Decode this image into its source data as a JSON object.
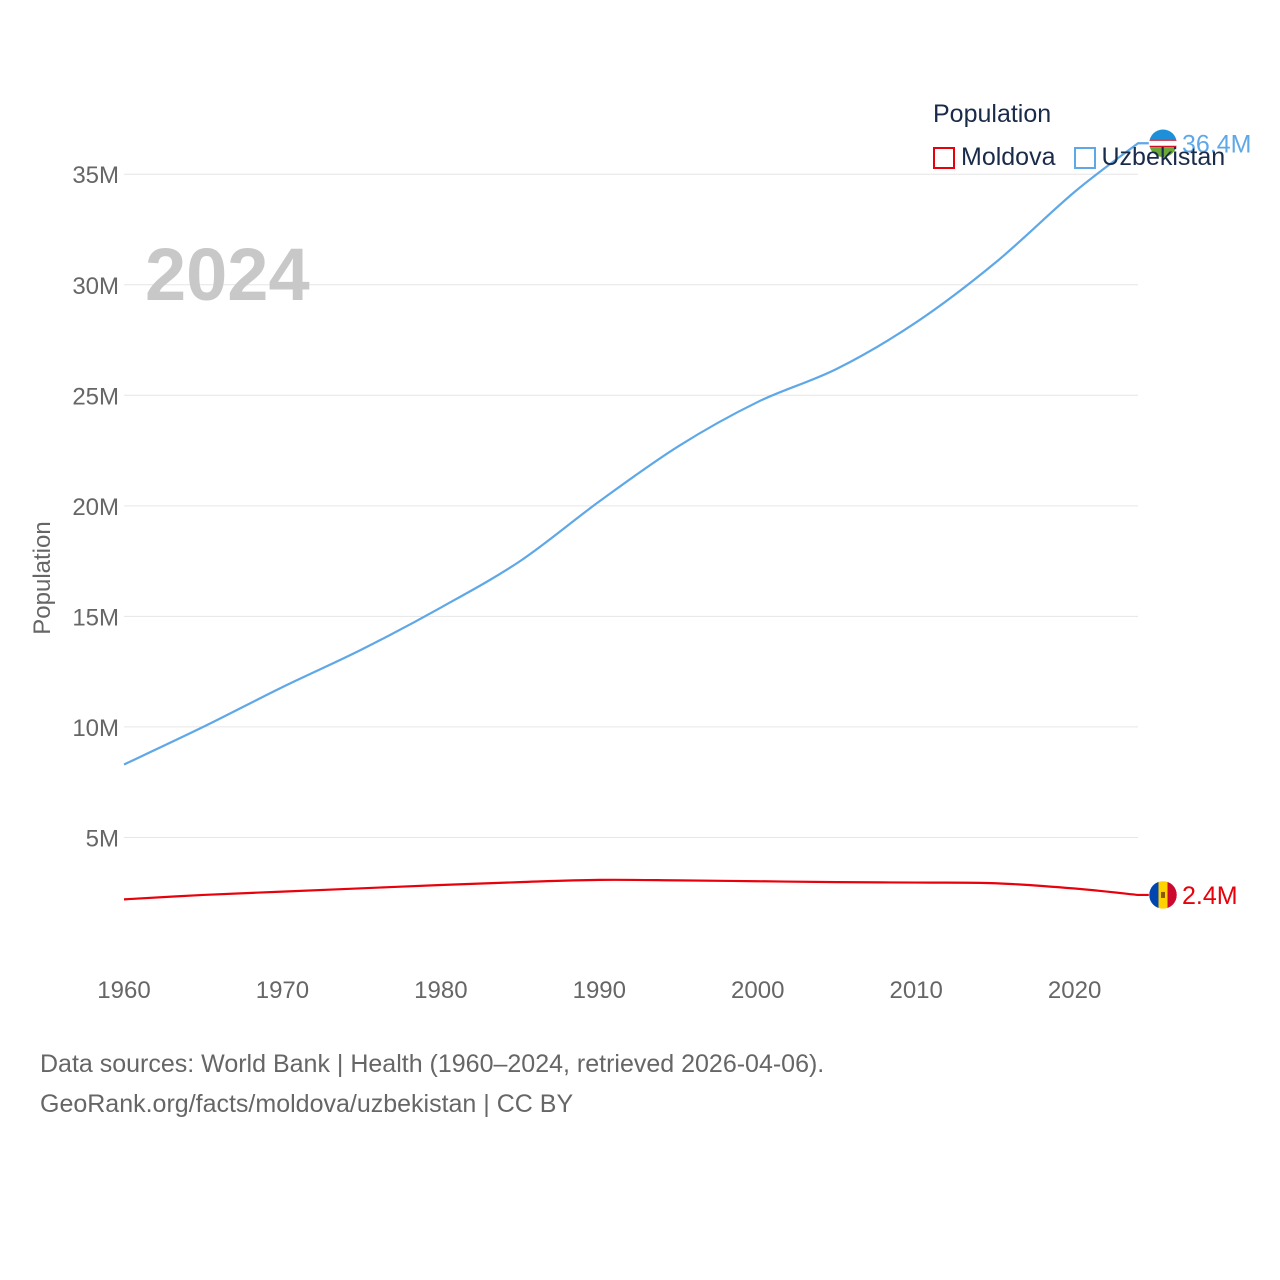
{
  "legend": {
    "title": "Population",
    "items": [
      {
        "label": "Moldova",
        "color": "#e8000b"
      },
      {
        "label": "Uzbekistan",
        "color": "#5fa8e8"
      }
    ]
  },
  "footer": {
    "line1": "Data sources: World Bank | Health (1960–2024, retrieved 2026-04-06).",
    "line2": "GeoRank.org/facts/moldova/uzbekistan | CC BY"
  },
  "chart_data": {
    "type": "line",
    "title": "",
    "year_label": "2024",
    "xlabel": "",
    "ylabel": "Population",
    "x": [
      1960,
      1965,
      1970,
      1975,
      1980,
      1985,
      1990,
      1995,
      2000,
      2005,
      2010,
      2015,
      2020,
      2024
    ],
    "xlim": [
      1960,
      2024
    ],
    "ylim": [
      0,
      37000000
    ],
    "x_ticks": [
      {
        "value": 1960,
        "label": "1960"
      },
      {
        "value": 1970,
        "label": "1970"
      },
      {
        "value": 1980,
        "label": "1980"
      },
      {
        "value": 1990,
        "label": "1990"
      },
      {
        "value": 2000,
        "label": "2000"
      },
      {
        "value": 2010,
        "label": "2010"
      },
      {
        "value": 2020,
        "label": "2020"
      }
    ],
    "y_ticks": [
      {
        "value": 5000000,
        "label": "5M"
      },
      {
        "value": 10000000,
        "label": "10M"
      },
      {
        "value": 15000000,
        "label": "15M"
      },
      {
        "value": 20000000,
        "label": "20M"
      },
      {
        "value": 25000000,
        "label": "25M"
      },
      {
        "value": 30000000,
        "label": "30M"
      },
      {
        "value": 35000000,
        "label": "35M"
      }
    ],
    "series": [
      {
        "name": "Moldova",
        "color": "#e8000b",
        "end_label": "2.4M",
        "flag": "moldova-flag-icon",
        "values": [
          2200000,
          2400000,
          2550000,
          2700000,
          2850000,
          2980000,
          3080000,
          3060000,
          3020000,
          2980000,
          2960000,
          2930000,
          2690000,
          2400000
        ]
      },
      {
        "name": "Uzbekistan",
        "color": "#5fa8e8",
        "end_label": "36.4M",
        "flag": "uzbekistan-flag-icon",
        "values": [
          8300000,
          10000000,
          11800000,
          13500000,
          15400000,
          17500000,
          20200000,
          22700000,
          24700000,
          26200000,
          28300000,
          31000000,
          34200000,
          36400000
        ]
      }
    ]
  }
}
